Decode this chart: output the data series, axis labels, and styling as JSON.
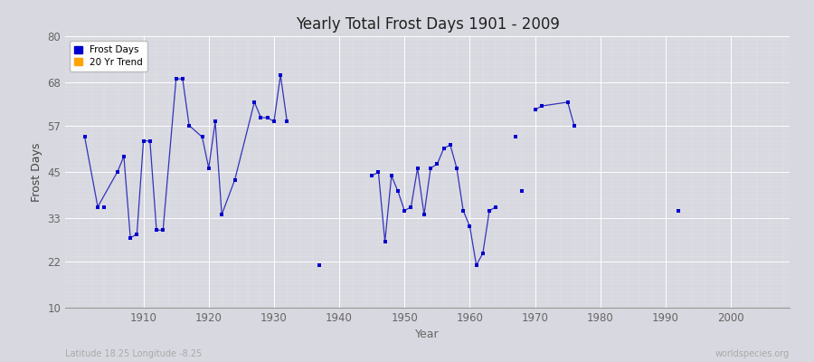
{
  "title": "Yearly Total Frost Days 1901 - 2009",
  "xlabel": "Year",
  "ylabel": "Frost Days",
  "subtitle_left": "Latitude 18.25 Longitude -8.25",
  "subtitle_right": "worldspecies.org",
  "ylim": [
    10,
    80
  ],
  "xlim": [
    1898,
    2009
  ],
  "yticks": [
    10,
    22,
    33,
    45,
    57,
    68,
    80
  ],
  "xticks": [
    1910,
    1920,
    1930,
    1940,
    1950,
    1960,
    1970,
    1980,
    1990,
    2000
  ],
  "background_color": "#d8d8e0",
  "plot_bg_color": "#d8d8e0",
  "line_color": "#3333bb",
  "point_color": "#0000cc",
  "legend_frost_color": "#0000cc",
  "legend_trend_color": "#ffa500",
  "connected_series": [
    [
      1901,
      54
    ],
    [
      1903,
      36
    ],
    [
      1906,
      45
    ],
    [
      1907,
      49
    ],
    [
      1908,
      28
    ],
    [
      1909,
      29
    ],
    [
      1910,
      53
    ],
    [
      1911,
      53
    ],
    [
      1912,
      30
    ],
    [
      1913,
      30
    ],
    [
      1915,
      69
    ],
    [
      1916,
      69
    ],
    [
      1917,
      57
    ],
    [
      1919,
      54
    ],
    [
      1920,
      46
    ],
    [
      1921,
      58
    ],
    [
      1922,
      34
    ],
    [
      1924,
      43
    ],
    [
      1927,
      63
    ],
    [
      1928,
      59
    ],
    [
      1929,
      59
    ],
    [
      1930,
      58
    ],
    [
      1931,
      70
    ],
    [
      1932,
      58
    ]
  ],
  "connected_series2": [
    [
      1945,
      44
    ],
    [
      1946,
      45
    ],
    [
      1947,
      27
    ],
    [
      1948,
      44
    ],
    [
      1949,
      40
    ],
    [
      1950,
      35
    ],
    [
      1951,
      36
    ],
    [
      1952,
      46
    ],
    [
      1953,
      34
    ],
    [
      1954,
      46
    ],
    [
      1955,
      47
    ],
    [
      1956,
      51
    ],
    [
      1957,
      52
    ],
    [
      1958,
      46
    ],
    [
      1959,
      35
    ],
    [
      1960,
      31
    ],
    [
      1961,
      21
    ],
    [
      1962,
      24
    ],
    [
      1963,
      35
    ],
    [
      1964,
      36
    ]
  ],
  "connected_series3": [
    [
      1970,
      61
    ],
    [
      1971,
      62
    ],
    [
      1975,
      63
    ],
    [
      1976,
      57
    ]
  ],
  "isolated_points": [
    [
      1904,
      36
    ],
    [
      1937,
      21
    ],
    [
      1967,
      54
    ],
    [
      1968,
      40
    ],
    [
      1992,
      35
    ]
  ]
}
